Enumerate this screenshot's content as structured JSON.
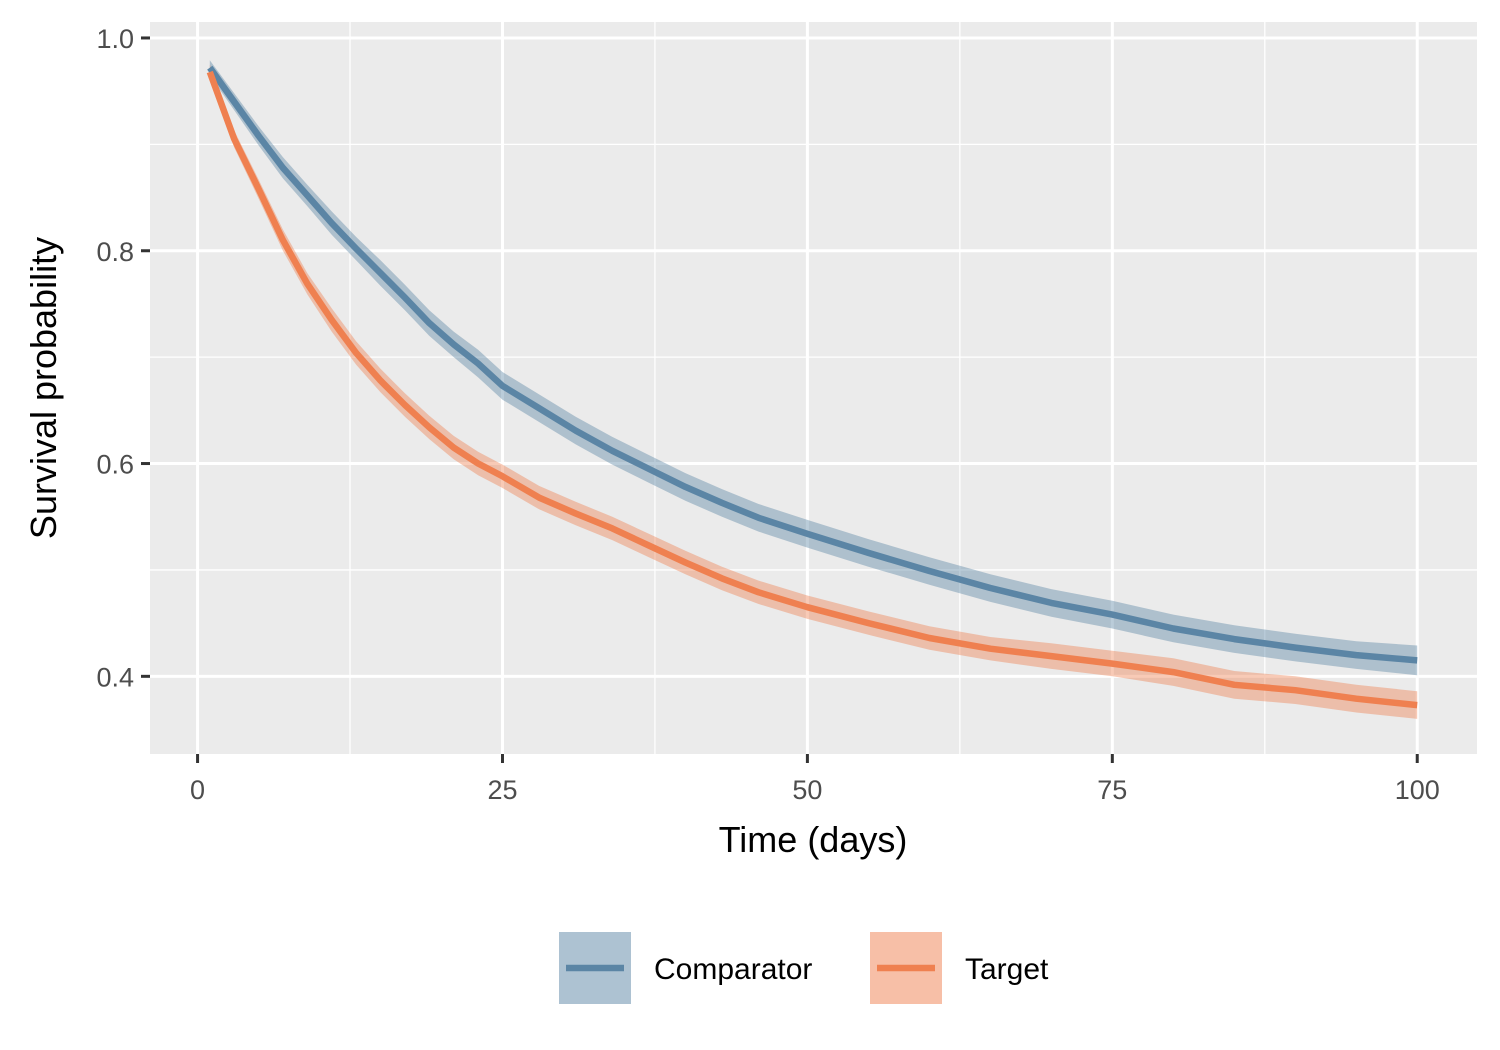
{
  "chart_data": {
    "type": "line",
    "xlabel": "Time (days)",
    "ylabel": "Survival probability",
    "xlim": [
      -3.9,
      104.9
    ],
    "ylim": [
      0.327,
      1.015
    ],
    "x_ticks": [
      0,
      25,
      50,
      75,
      100
    ],
    "x_tick_labels": [
      "0",
      "25",
      "50",
      "75",
      "100"
    ],
    "y_ticks": [
      0.4,
      0.6,
      0.8,
      1.0
    ],
    "y_tick_labels": [
      "0.4",
      "0.6",
      "0.8",
      "1.0"
    ],
    "grid": true,
    "legend_position": "bottom",
    "panel_background": "#ebebeb",
    "series": [
      {
        "name": "Comparator",
        "color": "#5b85a5",
        "x": [
          1,
          3,
          5,
          7,
          9,
          11,
          13,
          15,
          17,
          19,
          21,
          23,
          25,
          28,
          31,
          34,
          37,
          40,
          43,
          46,
          50,
          55,
          60,
          65,
          70,
          75,
          80,
          85,
          90,
          95,
          100
        ],
        "y": [
          0.972,
          0.94,
          0.908,
          0.878,
          0.852,
          0.826,
          0.802,
          0.779,
          0.756,
          0.732,
          0.712,
          0.694,
          0.673,
          0.652,
          0.631,
          0.612,
          0.595,
          0.578,
          0.563,
          0.549,
          0.534,
          0.516,
          0.499,
          0.483,
          0.469,
          0.458,
          0.445,
          0.435,
          0.427,
          0.42,
          0.415
        ],
        "lower": [
          0.965,
          0.932,
          0.899,
          0.868,
          0.842,
          0.815,
          0.791,
          0.767,
          0.744,
          0.72,
          0.7,
          0.681,
          0.66,
          0.639,
          0.618,
          0.599,
          0.582,
          0.565,
          0.55,
          0.536,
          0.521,
          0.503,
          0.486,
          0.47,
          0.456,
          0.445,
          0.432,
          0.422,
          0.414,
          0.407,
          0.401
        ],
        "upper": [
          0.979,
          0.948,
          0.917,
          0.888,
          0.862,
          0.837,
          0.813,
          0.791,
          0.768,
          0.744,
          0.724,
          0.707,
          0.686,
          0.665,
          0.644,
          0.625,
          0.608,
          0.591,
          0.576,
          0.562,
          0.547,
          0.529,
          0.512,
          0.496,
          0.482,
          0.471,
          0.458,
          0.448,
          0.44,
          0.433,
          0.429
        ]
      },
      {
        "name": "Target",
        "color": "#ef8050",
        "x": [
          1,
          3,
          5,
          7,
          9,
          11,
          13,
          15,
          17,
          19,
          21,
          23,
          25,
          28,
          31,
          34,
          37,
          40,
          43,
          46,
          50,
          55,
          60,
          65,
          70,
          75,
          80,
          85,
          90,
          95,
          100
        ],
        "y": [
          0.968,
          0.905,
          0.858,
          0.81,
          0.769,
          0.735,
          0.704,
          0.678,
          0.655,
          0.634,
          0.615,
          0.6,
          0.588,
          0.568,
          0.553,
          0.539,
          0.523,
          0.507,
          0.492,
          0.479,
          0.465,
          0.45,
          0.436,
          0.426,
          0.419,
          0.412,
          0.404,
          0.392,
          0.387,
          0.379,
          0.373
        ],
        "lower": [
          0.961,
          0.897,
          0.849,
          0.8,
          0.759,
          0.724,
          0.693,
          0.667,
          0.644,
          0.623,
          0.604,
          0.589,
          0.577,
          0.557,
          0.542,
          0.528,
          0.512,
          0.496,
          0.481,
          0.468,
          0.454,
          0.439,
          0.425,
          0.415,
          0.407,
          0.4,
          0.391,
          0.379,
          0.374,
          0.366,
          0.36
        ],
        "upper": [
          0.975,
          0.913,
          0.867,
          0.82,
          0.779,
          0.746,
          0.715,
          0.689,
          0.666,
          0.645,
          0.626,
          0.611,
          0.599,
          0.579,
          0.564,
          0.55,
          0.534,
          0.518,
          0.503,
          0.49,
          0.476,
          0.461,
          0.447,
          0.437,
          0.431,
          0.424,
          0.417,
          0.405,
          0.4,
          0.392,
          0.386
        ]
      }
    ]
  }
}
